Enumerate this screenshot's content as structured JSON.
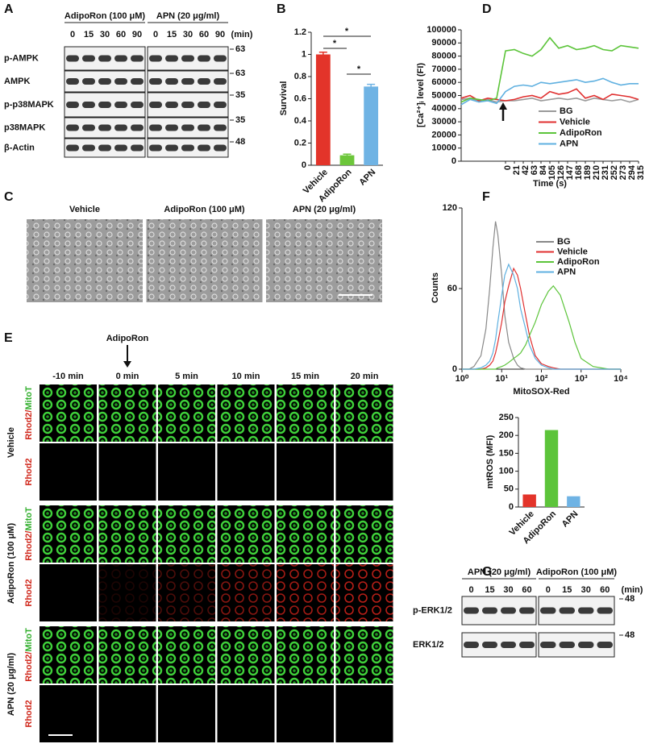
{
  "panels": {
    "labels": [
      "A",
      "B",
      "C",
      "D",
      "E",
      "F",
      "G"
    ]
  },
  "blot_a": {
    "groups": [
      {
        "name": "AdipoRon (100 μM)",
        "lanes": [
          "0",
          "15",
          "30",
          "60",
          "90"
        ]
      },
      {
        "name": "APN (20 μg/ml)",
        "lanes": [
          "0",
          "15",
          "30",
          "60",
          "90"
        ]
      }
    ],
    "unit": "(min)",
    "rows": [
      "p-AMPK",
      "AMPK",
      "p-p38MAPK",
      "p38MAPK",
      "β-Actin"
    ],
    "mw": [
      "63",
      "63",
      "35",
      "35",
      "48"
    ]
  },
  "micrographs_c": {
    "labels": [
      "Vehicle",
      "AdipoRon (100 μM)",
      "APN (20 μg/ml)"
    ]
  },
  "imaging_e": {
    "stimulus": "AdipoRon",
    "times": [
      "-10 min",
      "0 min",
      "5 min",
      "10 min",
      "15 min",
      "20 min"
    ],
    "groups": [
      "Vehicle",
      "AdipoRon (100 μM)",
      "APN (20 μg/ml)"
    ],
    "channels": [
      [
        "Rhod2/",
        "MitoT"
      ],
      [
        "Rhod2"
      ]
    ]
  },
  "blot_g": {
    "groups": [
      {
        "name": "APN (20 μg/ml)",
        "lanes": [
          "0",
          "15",
          "30",
          "60"
        ]
      },
      {
        "name": "AdipoRon (100 μM)",
        "lanes": [
          "0",
          "15",
          "30",
          "60"
        ]
      }
    ],
    "unit": "(min)",
    "rows": [
      "p-ERK1/2",
      "ERK1/2"
    ],
    "mw": [
      "48",
      "48"
    ]
  },
  "chart_data": [
    {
      "type": "bar",
      "y_label": "Survival",
      "categories": [
        "Vehicle",
        "AdipoRon",
        "APN"
      ],
      "values": [
        1.0,
        0.09,
        0.71
      ],
      "errors": [
        0.02,
        0.01,
        0.02
      ],
      "colors": [
        "#e3342a",
        "#6cc63a",
        "#6fb3e4"
      ],
      "ylim": [
        0,
        1.2
      ],
      "yticks": [
        0,
        0.2,
        0.4,
        0.6,
        0.8,
        1,
        1.2
      ],
      "annotations": [
        "*",
        "*",
        "*"
      ]
    },
    {
      "type": "line",
      "y_label": "[Ca²⁺]ᵢ level (FI)",
      "x_label": "Time (s)",
      "categories": [
        null,
        null,
        null,
        null,
        null,
        "0",
        "21",
        "42",
        "63",
        "84",
        "105",
        "126",
        "147",
        "168",
        "189",
        "210",
        "231",
        "252",
        "273",
        "294",
        "315"
      ],
      "ylim": [
        0,
        100000
      ],
      "yticks": [
        0,
        10000,
        20000,
        30000,
        40000,
        50000,
        60000,
        70000,
        80000,
        90000,
        100000
      ],
      "series": [
        {
          "name": "BG",
          "color": "#9a9a9a",
          "values": [
            47000,
            48000,
            46000,
            47000,
            45000,
            46000,
            46000,
            47000,
            48000,
            46000,
            47000,
            48000,
            47000,
            48000,
            46000,
            48000,
            47000,
            46000,
            47000,
            45000,
            47000
          ]
        },
        {
          "name": "Vehicle",
          "color": "#e03030",
          "values": [
            48000,
            50000,
            46000,
            48000,
            47000,
            46000,
            47000,
            49000,
            50000,
            48000,
            53000,
            51000,
            52000,
            55000,
            48000,
            50000,
            47000,
            51000,
            50000,
            49000,
            47000
          ]
        },
        {
          "name": "AdipoRon",
          "color": "#5cc43a",
          "values": [
            45000,
            48000,
            47000,
            46000,
            48000,
            84000,
            85000,
            82000,
            80000,
            85000,
            94000,
            86000,
            88000,
            85000,
            86000,
            88000,
            85000,
            84000,
            88000,
            87000,
            86000
          ]
        },
        {
          "name": "APN",
          "color": "#5fb0e0",
          "values": [
            43000,
            47000,
            45000,
            46000,
            44000,
            53000,
            57000,
            58000,
            57000,
            60000,
            59000,
            60000,
            61000,
            62000,
            60000,
            61000,
            63000,
            60000,
            58000,
            59000,
            59000
          ]
        }
      ]
    },
    {
      "type": "line",
      "log_x": true,
      "x_label": "MitoSOX-Red",
      "y_label": "Counts",
      "x": [
        1,
        1.5,
        2,
        3,
        4,
        5,
        6,
        7,
        8,
        10,
        12,
        15,
        20,
        25,
        30,
        40,
        50,
        70,
        100,
        150,
        200,
        300,
        500,
        700,
        1000,
        2000,
        5000,
        10000
      ],
      "xlim": [
        1,
        10000
      ],
      "xticks": [
        {
          "value": 1,
          "label": "10⁰"
        },
        {
          "value": 10,
          "label": "10¹"
        },
        {
          "value": 100,
          "label": "10²"
        },
        {
          "value": 1000,
          "label": "10³"
        },
        {
          "value": 10000,
          "label": "10⁴"
        }
      ],
      "ylim": [
        0,
        120
      ],
      "yticks": [
        0,
        60,
        120
      ],
      "series": [
        {
          "name": "BG",
          "color": "#888888",
          "values": [
            0,
            0,
            2,
            10,
            30,
            60,
            90,
            110,
            100,
            70,
            40,
            20,
            8,
            3,
            1,
            0,
            0,
            0,
            0,
            0,
            0,
            0,
            0,
            0,
            0,
            0,
            0,
            0
          ]
        },
        {
          "name": "Vehicle",
          "color": "#e03030",
          "values": [
            0,
            0,
            0,
            0,
            1,
            3,
            6,
            12,
            20,
            35,
            50,
            62,
            75,
            70,
            60,
            40,
            25,
            10,
            4,
            2,
            1,
            0,
            0,
            0,
            0,
            0,
            0,
            0
          ]
        },
        {
          "name": "AdipoRon",
          "color": "#5cc43a",
          "values": [
            0,
            0,
            0,
            0,
            0,
            0,
            0,
            0,
            1,
            2,
            3,
            5,
            8,
            10,
            12,
            18,
            25,
            35,
            48,
            58,
            62,
            55,
            35,
            20,
            8,
            2,
            0,
            0
          ]
        },
        {
          "name": "APN",
          "color": "#5fb0e0",
          "values": [
            0,
            0,
            0,
            1,
            3,
            6,
            12,
            22,
            35,
            55,
            70,
            78,
            70,
            60,
            45,
            30,
            18,
            8,
            3,
            1,
            0,
            0,
            0,
            0,
            0,
            0,
            0,
            0
          ]
        }
      ]
    },
    {
      "type": "bar",
      "y_label": "mtROS (MFI)",
      "categories": [
        "Vehicle",
        "AdipoRon",
        "APN"
      ],
      "values": [
        35,
        215,
        30
      ],
      "colors": [
        "#e3342a",
        "#5cc43a",
        "#6fb3e4"
      ],
      "ylim": [
        0,
        250
      ],
      "yticks": [
        0,
        50,
        100,
        150,
        200,
        250
      ]
    }
  ]
}
